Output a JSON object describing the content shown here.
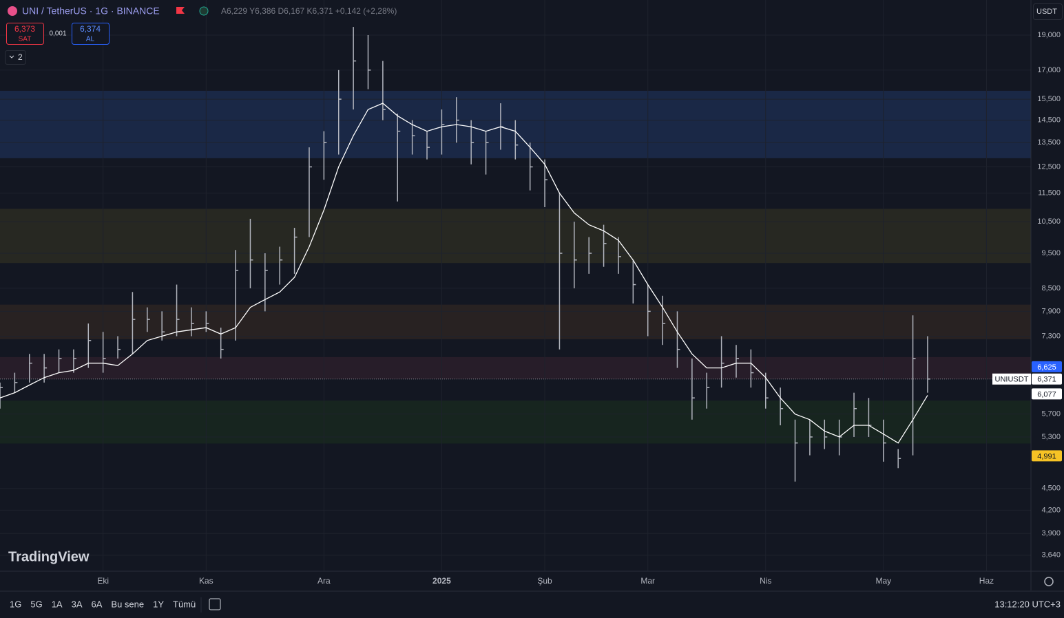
{
  "header": {
    "symbol": "UNI / TetherUS · 1G · BINANCE",
    "ohlc": "A6,229 Y6,386 D6,167 K6,371 +0,142 (+2,28%)",
    "sell_price": "6,373",
    "sell_label": "SAT",
    "spread": "0,001",
    "buy_price": "6,374",
    "buy_label": "AL",
    "indicators_count": "2",
    "currency": "USDT"
  },
  "chart_data": {
    "type": "ohlc",
    "log_scale": true,
    "grid": true,
    "watermark": "TradingView",
    "categories": [
      null,
      null,
      null,
      null,
      null,
      null,
      null,
      "Eki",
      null,
      null,
      null,
      null,
      null,
      null,
      "Kas",
      null,
      null,
      null,
      null,
      null,
      null,
      null,
      "Ara",
      null,
      null,
      null,
      null,
      null,
      null,
      null,
      "2025",
      null,
      null,
      null,
      null,
      null,
      null,
      "Şub",
      null,
      null,
      null,
      null,
      null,
      null,
      "Mar",
      null,
      null,
      null,
      null,
      null,
      null,
      null,
      "Nis",
      null,
      null,
      null,
      null,
      null,
      null,
      null,
      "May",
      null,
      null,
      null,
      null,
      null,
      null,
      "Haz",
      null,
      null
    ],
    "high": [
      6.3,
      6.5,
      6.9,
      6.9,
      7.0,
      7.0,
      7.6,
      7.4,
      7.3,
      8.4,
      8.0,
      7.9,
      8.6,
      8.0,
      7.9,
      7.5,
      9.6,
      10.6,
      9.5,
      9.7,
      10.3,
      13.3,
      14.0,
      17.0,
      19.5,
      19.0,
      17.5,
      14.8,
      14.5,
      14.0,
      15.0,
      15.6,
      14.5,
      14.0,
      15.3,
      14.5,
      13.5,
      12.8,
      11.5,
      10.5,
      10.0,
      10.4,
      10.0,
      9.3,
      8.6,
      8.3,
      7.9,
      6.8,
      6.5,
      7.3,
      7.1,
      7.0,
      6.5,
      6.2,
      5.6,
      5.6,
      5.6,
      5.6,
      6.1,
      6.0,
      5.6,
      5.1,
      7.8,
      7.3,
      null,
      null,
      null,
      null,
      null,
      null
    ],
    "low": [
      5.8,
      6.1,
      6.3,
      6.3,
      6.5,
      6.5,
      6.6,
      6.5,
      6.8,
      6.9,
      7.4,
      7.2,
      7.3,
      7.3,
      7.4,
      6.8,
      7.2,
      8.5,
      7.9,
      8.6,
      8.9,
      10.0,
      12.0,
      13.0,
      15.0,
      16.0,
      14.5,
      11.2,
      13.0,
      12.8,
      13.0,
      13.5,
      12.6,
      12.2,
      13.2,
      12.8,
      11.6,
      11.0,
      7.0,
      8.5,
      8.9,
      9.1,
      8.9,
      8.1,
      7.3,
      7.1,
      6.6,
      5.6,
      5.8,
      6.2,
      6.4,
      6.2,
      5.8,
      5.5,
      4.6,
      5.0,
      5.1,
      5.0,
      5.3,
      5.3,
      4.9,
      4.8,
      5.0,
      6.1,
      null,
      null,
      null,
      null,
      null,
      null
    ],
    "close": [
      6.2,
      6.3,
      6.7,
      6.6,
      6.8,
      6.8,
      7.2,
      6.8,
      7.0,
      7.7,
      7.7,
      7.4,
      7.7,
      7.6,
      7.6,
      7.0,
      9.0,
      9.3,
      9.0,
      9.3,
      10.0,
      12.5,
      13.5,
      15.5,
      17.5,
      17.0,
      15.0,
      14.0,
      13.8,
      13.3,
      14.3,
      14.5,
      13.5,
      13.5,
      14.2,
      13.4,
      12.5,
      12.0,
      9.5,
      9.3,
      9.5,
      9.8,
      9.4,
      8.6,
      7.9,
      7.6,
      7.0,
      6.0,
      6.2,
      6.7,
      6.8,
      6.5,
      6.0,
      5.8,
      5.2,
      5.3,
      5.3,
      5.3,
      5.8,
      5.5,
      5.2,
      4.95,
      6.8,
      6.371,
      null,
      null,
      null,
      null,
      null,
      null
    ],
    "bar_color": "#b2b5be",
    "ma": {
      "color": "#ffffff",
      "values": [
        6.0,
        6.1,
        6.25,
        6.4,
        6.5,
        6.55,
        6.7,
        6.7,
        6.65,
        6.9,
        7.2,
        7.3,
        7.4,
        7.45,
        7.5,
        7.35,
        7.5,
        8.0,
        8.2,
        8.4,
        8.8,
        9.7,
        10.9,
        12.5,
        13.8,
        15.0,
        15.3,
        14.7,
        14.3,
        14.0,
        14.2,
        14.3,
        14.2,
        14.0,
        14.2,
        14.0,
        13.3,
        12.6,
        11.5,
        10.8,
        10.4,
        10.2,
        9.9,
        9.3,
        8.6,
        8.0,
        7.4,
        6.9,
        6.6,
        6.6,
        6.7,
        6.7,
        6.4,
        6.0,
        5.7,
        5.6,
        5.4,
        5.3,
        5.5,
        5.5,
        5.35,
        5.2,
        5.6,
        6.05,
        null,
        null,
        null,
        null,
        null,
        null
      ]
    },
    "zones": [
      {
        "low": 12.85,
        "high": 15.92,
        "color": "#1c2a4a"
      },
      {
        "low": 9.21,
        "high": 10.94,
        "color": "#2a2a22"
      },
      {
        "low": 7.23,
        "high": 8.07,
        "color": "#2b2322"
      },
      {
        "low": 6.37,
        "high": 6.83,
        "color": "#2a1e2a"
      },
      {
        "low": 5.19,
        "high": 5.95,
        "color": "#18271f"
      }
    ],
    "ylim": [
      3.46,
      21.24
    ],
    "yticks": [
      {
        "value": 19,
        "label": "19,000"
      },
      {
        "value": 17,
        "label": "17,000"
      },
      {
        "value": 15.5,
        "label": "15,500"
      },
      {
        "value": 14.5,
        "label": "14,500"
      },
      {
        "value": 13.5,
        "label": "13,500"
      },
      {
        "value": 12.5,
        "label": "12,500"
      },
      {
        "value": 11.5,
        "label": "11,500"
      },
      {
        "value": 10.5,
        "label": "10,500"
      },
      {
        "value": 9.5,
        "label": "9,500"
      },
      {
        "value": 8.5,
        "label": "8,500"
      },
      {
        "value": 7.9,
        "label": "7,900"
      },
      {
        "value": 7.3,
        "label": "7,300"
      },
      {
        "value": 5.7,
        "label": "5,700"
      },
      {
        "value": 5.3,
        "label": "5,300"
      },
      {
        "value": 4.5,
        "label": "4,500"
      },
      {
        "value": 4.2,
        "label": "4,200"
      },
      {
        "value": 3.9,
        "label": "3,900"
      },
      {
        "value": 3.64,
        "label": "3,640"
      }
    ],
    "price_labels": [
      {
        "value": 6.625,
        "label": "6,625",
        "color": "#2962ff",
        "text_color": "#ffffff"
      },
      {
        "value": 6.371,
        "label": "6,371",
        "color": "#ffffff",
        "text_color": "#131722",
        "tag": "UNIUSDT"
      },
      {
        "value": 6.077,
        "label": "6,077",
        "color": "#ffffff",
        "text_color": "#131722"
      },
      {
        "value": 4.991,
        "label": "4,991",
        "color": "#f7c325",
        "text_color": "#131722"
      }
    ]
  },
  "footer": {
    "ranges": [
      "1G",
      "5G",
      "1A",
      "3A",
      "6A",
      "Bu sene",
      "1Y",
      "Tümü"
    ],
    "clock": "13:12:20 UTC+3"
  }
}
